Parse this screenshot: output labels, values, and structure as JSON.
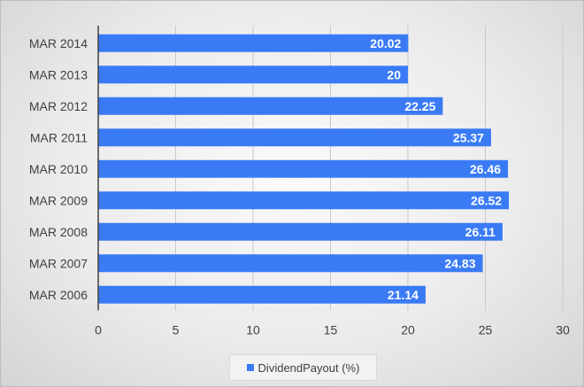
{
  "colors": {
    "bar": "#3a7bf5",
    "axis": "#404040",
    "grid": "#c8c8c8"
  },
  "chart_data": {
    "type": "bar",
    "orientation": "horizontal",
    "categories": [
      "MAR 2014",
      "MAR 2013",
      "MAR 2012",
      "MAR 2011",
      "MAR 2010",
      "MAR 2009",
      "MAR 2008",
      "MAR 2007",
      "MAR 2006"
    ],
    "series": [
      {
        "name": "DividendPayout (%)",
        "values": [
          20.02,
          20,
          22.25,
          25.37,
          26.46,
          26.52,
          26.11,
          24.83,
          21.14
        ],
        "labels": [
          "20.02",
          "20",
          "22.25",
          "25.37",
          "26.46",
          "26.52",
          "26.11",
          "24.83",
          "21.14"
        ]
      }
    ],
    "xlim": [
      0,
      30
    ],
    "xticks": [
      "0",
      "5",
      "10",
      "15",
      "20",
      "25",
      "30"
    ],
    "grid": true,
    "legend": "bottom"
  }
}
